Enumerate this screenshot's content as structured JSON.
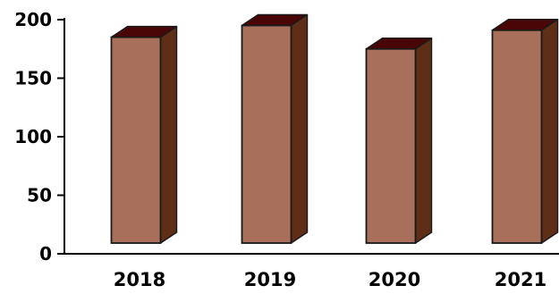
{
  "chart_data": {
    "type": "bar",
    "style": "3d-column",
    "categories": [
      "2018",
      "2019",
      "2020",
      "2021"
    ],
    "values": [
      185,
      195,
      175,
      191
    ],
    "title": "",
    "xlabel": "",
    "ylabel": "",
    "ylim": [
      0,
      200
    ],
    "yticks": [
      0,
      50,
      100,
      150,
      200
    ],
    "grid": false,
    "legend": "none",
    "colors": {
      "front": "#A8705A",
      "side": "#5E2E16",
      "top": "#4A0606",
      "stroke": "#1a1a1a",
      "axis": "#000000"
    }
  }
}
